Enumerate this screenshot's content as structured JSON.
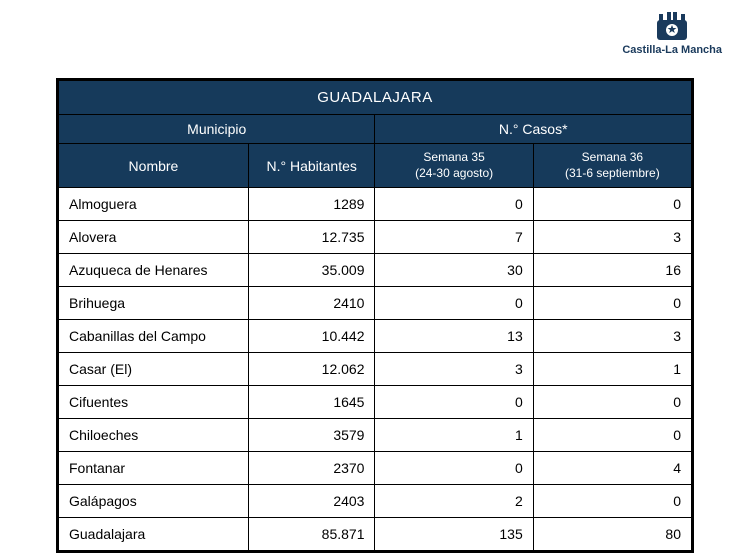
{
  "brand": {
    "name": "Castilla-La Mancha"
  },
  "table": {
    "title": "GUADALAJARA",
    "group_municipio": "Municipio",
    "group_casos": "N.° Casos*",
    "col_nombre": "Nombre",
    "col_habitantes": "N.° Habitantes",
    "col_sem35_a": "Semana 35",
    "col_sem35_b": "(24-30 agosto)",
    "col_sem36_a": "Semana 36",
    "col_sem36_b": "(31-6 septiembre)",
    "header_bg": "#163a5b",
    "header_fg": "#ffffff",
    "border_color": "#000000",
    "rows": [
      {
        "nombre": "Almoguera",
        "hab": "1289",
        "s35": "0",
        "s36": "0"
      },
      {
        "nombre": "Alovera",
        "hab": "12.735",
        "s35": "7",
        "s36": "3"
      },
      {
        "nombre": "Azuqueca de Henares",
        "hab": "35.009",
        "s35": "30",
        "s36": "16"
      },
      {
        "nombre": "Brihuega",
        "hab": "2410",
        "s35": "0",
        "s36": "0"
      },
      {
        "nombre": "Cabanillas del Campo",
        "hab": "10.442",
        "s35": "13",
        "s36": "3"
      },
      {
        "nombre": "Casar (El)",
        "hab": "12.062",
        "s35": "3",
        "s36": "1"
      },
      {
        "nombre": "Cifuentes",
        "hab": "1645",
        "s35": "0",
        "s36": "0"
      },
      {
        "nombre": "Chiloeches",
        "hab": "3579",
        "s35": "1",
        "s36": "0"
      },
      {
        "nombre": "Fontanar",
        "hab": "2370",
        "s35": "0",
        "s36": "4"
      },
      {
        "nombre": "Galápagos",
        "hab": "2403",
        "s35": "2",
        "s36": "0"
      },
      {
        "nombre": "Guadalajara",
        "hab": "85.871",
        "s35": "135",
        "s36": "80"
      }
    ]
  }
}
